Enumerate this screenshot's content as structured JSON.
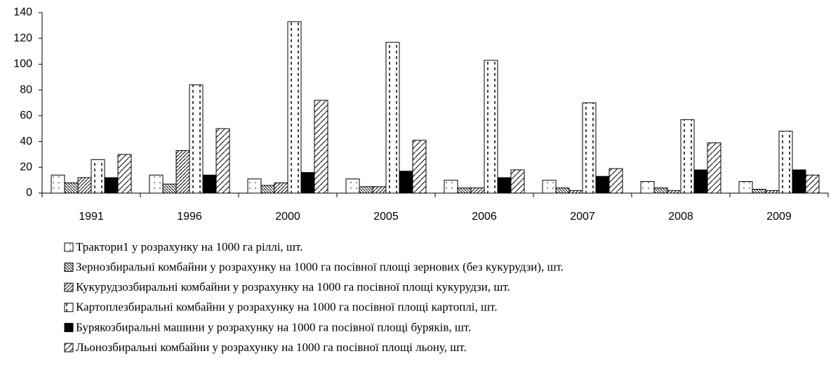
{
  "chart_data": {
    "type": "bar",
    "categories": [
      "1991",
      "1996",
      "2000",
      "2005",
      "2006",
      "2007",
      "2008",
      "2009"
    ],
    "series": [
      {
        "name": "Трактори1 у розрахунку на 1000 га ріллі, шт.",
        "color": "#ffffff",
        "pattern": "dots",
        "values": [
          14,
          14,
          11,
          11,
          10,
          10,
          9,
          9
        ]
      },
      {
        "name": "Зернозбиральні комбайни у розрахунку на 1000 га посівної площі зернових (без кукурудзи), шт.",
        "color": "#ffffff",
        "pattern": "dense-back",
        "values": [
          8,
          7,
          6,
          5,
          4,
          4,
          4,
          3
        ]
      },
      {
        "name": "Кукурудзозбиральні комбайни у розрахунку на 1000 га посівної площі кукурудзи, шт.",
        "color": "#ffffff",
        "pattern": "forward",
        "values": [
          12,
          33,
          8,
          5,
          4,
          2,
          2,
          2
        ]
      },
      {
        "name": "Картоплезбиральні комбайни у розрахунку на 1000 га посівної площі картоплі, шт.",
        "color": "#ffffff",
        "pattern": "vdash",
        "values": [
          26,
          84,
          133,
          117,
          103,
          70,
          57,
          48
        ]
      },
      {
        "name": "Бурякозбиральні машини у розрахунку на 1000 га посівної площі буряків, шт.",
        "color": "#000000",
        "pattern": "solid",
        "values": [
          12,
          14,
          16,
          17,
          12,
          13,
          18,
          18
        ]
      },
      {
        "name": "Льонозбиральні комбайни у розрахунку на 1000 га посівної площі льону, шт.",
        "color": "#ffffff",
        "pattern": "wide-forward",
        "values": [
          30,
          50,
          72,
          41,
          18,
          19,
          39,
          14
        ]
      }
    ],
    "ylim": [
      0,
      140
    ],
    "yticks": [
      0,
      20,
      40,
      60,
      80,
      100,
      120,
      140
    ],
    "grid": false,
    "legend": "bottom"
  }
}
